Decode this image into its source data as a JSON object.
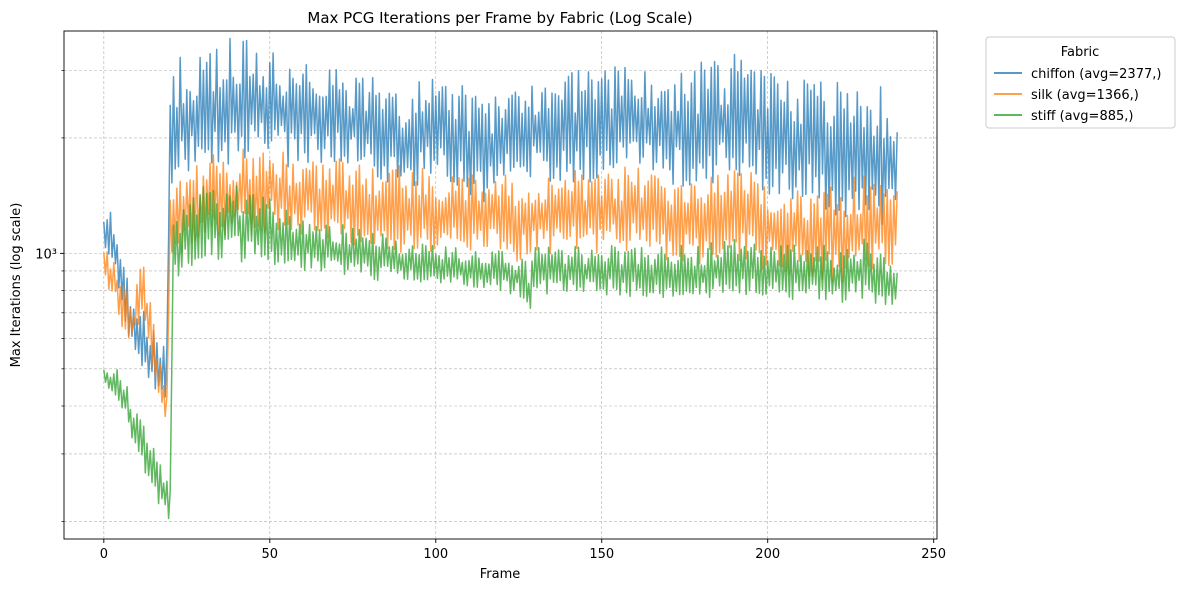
{
  "chart_data": {
    "type": "line",
    "title": "Max PCG Iterations per Frame by Fabric (Log Scale)",
    "xlabel": "Frame",
    "ylabel": "Max Iterations (log scale)",
    "y_scale": "log",
    "xlim": [
      -12,
      251
    ],
    "ylim": [
      180,
      3800
    ],
    "x_ticks": [
      0,
      50,
      100,
      150,
      200,
      250
    ],
    "y_major_ticks": [
      {
        "value": 1000,
        "label": "10³"
      }
    ],
    "y_minor_ticks": [
      200,
      300,
      400,
      500,
      600,
      700,
      800,
      900,
      2000,
      3000
    ],
    "grid": true,
    "legend": {
      "title": "Fabric",
      "placement": "outside-top-right"
    },
    "series": [
      {
        "name": "chiffon (avg=2377,)",
        "color": "#1f77b4",
        "avg": 2377,
        "envelope": [
          [
            0,
            1000,
            1300
          ],
          [
            2,
            950,
            1400
          ],
          [
            5,
            700,
            1000
          ],
          [
            8,
            580,
            800
          ],
          [
            12,
            480,
            720
          ],
          [
            16,
            400,
            600
          ],
          [
            19,
            420,
            600
          ],
          [
            20,
            1500,
            3100
          ],
          [
            25,
            1550,
            3400
          ],
          [
            30,
            1500,
            3550
          ],
          [
            35,
            1650,
            3650
          ],
          [
            40,
            1700,
            3700
          ],
          [
            45,
            1700,
            3550
          ],
          [
            50,
            1800,
            3450
          ],
          [
            55,
            1650,
            3350
          ],
          [
            60,
            1700,
            3200
          ],
          [
            70,
            1700,
            3050
          ],
          [
            80,
            1600,
            2900
          ],
          [
            90,
            1450,
            2700
          ],
          [
            100,
            1500,
            3100
          ],
          [
            105,
            1450,
            2950
          ],
          [
            110,
            1400,
            2700
          ],
          [
            115,
            1350,
            2500
          ],
          [
            120,
            1450,
            2750
          ],
          [
            125,
            1600,
            2950
          ],
          [
            130,
            1550,
            2950
          ],
          [
            140,
            1500,
            3000
          ],
          [
            150,
            1550,
            3050
          ],
          [
            160,
            1600,
            3150
          ],
          [
            170,
            1500,
            2950
          ],
          [
            180,
            1450,
            3150
          ],
          [
            190,
            1550,
            3300
          ],
          [
            195,
            1500,
            3100
          ],
          [
            200,
            1400,
            3000
          ],
          [
            210,
            1350,
            2900
          ],
          [
            220,
            1200,
            2850
          ],
          [
            230,
            1250,
            2800
          ],
          [
            239,
            1050,
            2650
          ]
        ]
      },
      {
        "name": "silk (avg=1366,)",
        "color": "#ff7f0e",
        "avg": 1366,
        "envelope": [
          [
            0,
            820,
            1050
          ],
          [
            3,
            750,
            980
          ],
          [
            5,
            650,
            850
          ],
          [
            9,
            560,
            750
          ],
          [
            11,
            600,
            1100
          ],
          [
            13,
            560,
            850
          ],
          [
            16,
            420,
            600
          ],
          [
            19,
            330,
            460
          ],
          [
            20,
            1000,
            1500
          ],
          [
            25,
            1000,
            1650
          ],
          [
            30,
            1050,
            1750
          ],
          [
            35,
            1100,
            1850
          ],
          [
            40,
            1100,
            1850
          ],
          [
            45,
            1100,
            1900
          ],
          [
            50,
            1150,
            1950
          ],
          [
            55,
            1100,
            1850
          ],
          [
            60,
            1100,
            1800
          ],
          [
            70,
            1050,
            1800
          ],
          [
            80,
            1000,
            1750
          ],
          [
            90,
            1000,
            1700
          ],
          [
            100,
            1000,
            1650
          ],
          [
            110,
            1000,
            1650
          ],
          [
            120,
            980,
            1650
          ],
          [
            125,
            950,
            1550
          ],
          [
            130,
            980,
            1650
          ],
          [
            140,
            1000,
            1650
          ],
          [
            150,
            1000,
            1650
          ],
          [
            160,
            1000,
            1700
          ],
          [
            170,
            950,
            1650
          ],
          [
            180,
            900,
            1600
          ],
          [
            190,
            950,
            1700
          ],
          [
            200,
            900,
            1600
          ],
          [
            210,
            850,
            1550
          ],
          [
            220,
            800,
            1500
          ],
          [
            230,
            850,
            1650
          ],
          [
            239,
            900,
            1550
          ]
        ]
      },
      {
        "name": "stiff (avg=885,)",
        "color": "#2ca02c",
        "avg": 885,
        "envelope": [
          [
            0,
            460,
            500
          ],
          [
            2,
            440,
            480
          ],
          [
            4,
            410,
            520
          ],
          [
            6,
            380,
            470
          ],
          [
            8,
            330,
            430
          ],
          [
            10,
            300,
            400
          ],
          [
            12,
            270,
            360
          ],
          [
            14,
            245,
            320
          ],
          [
            16,
            225,
            300
          ],
          [
            18,
            210,
            280
          ],
          [
            20,
            195,
            260
          ],
          [
            21,
            820,
            1250
          ],
          [
            25,
            900,
            1350
          ],
          [
            30,
            950,
            1500
          ],
          [
            35,
            950,
            1550
          ],
          [
            40,
            950,
            1500
          ],
          [
            45,
            950,
            1450
          ],
          [
            50,
            930,
            1400
          ],
          [
            55,
            920,
            1300
          ],
          [
            60,
            900,
            1250
          ],
          [
            70,
            880,
            1200
          ],
          [
            80,
            850,
            1150
          ],
          [
            90,
            830,
            1100
          ],
          [
            100,
            830,
            1050
          ],
          [
            110,
            820,
            1030
          ],
          [
            120,
            800,
            1020
          ],
          [
            126,
            760,
            980
          ],
          [
            128,
            640,
            950
          ],
          [
            130,
            770,
            1050
          ],
          [
            140,
            790,
            1050
          ],
          [
            150,
            780,
            1050
          ],
          [
            160,
            770,
            1050
          ],
          [
            170,
            760,
            1050
          ],
          [
            180,
            760,
            1050
          ],
          [
            190,
            780,
            1100
          ],
          [
            200,
            760,
            1050
          ],
          [
            210,
            750,
            1050
          ],
          [
            220,
            740,
            1050
          ],
          [
            230,
            750,
            1100
          ],
          [
            239,
            720,
            900
          ]
        ]
      }
    ]
  }
}
